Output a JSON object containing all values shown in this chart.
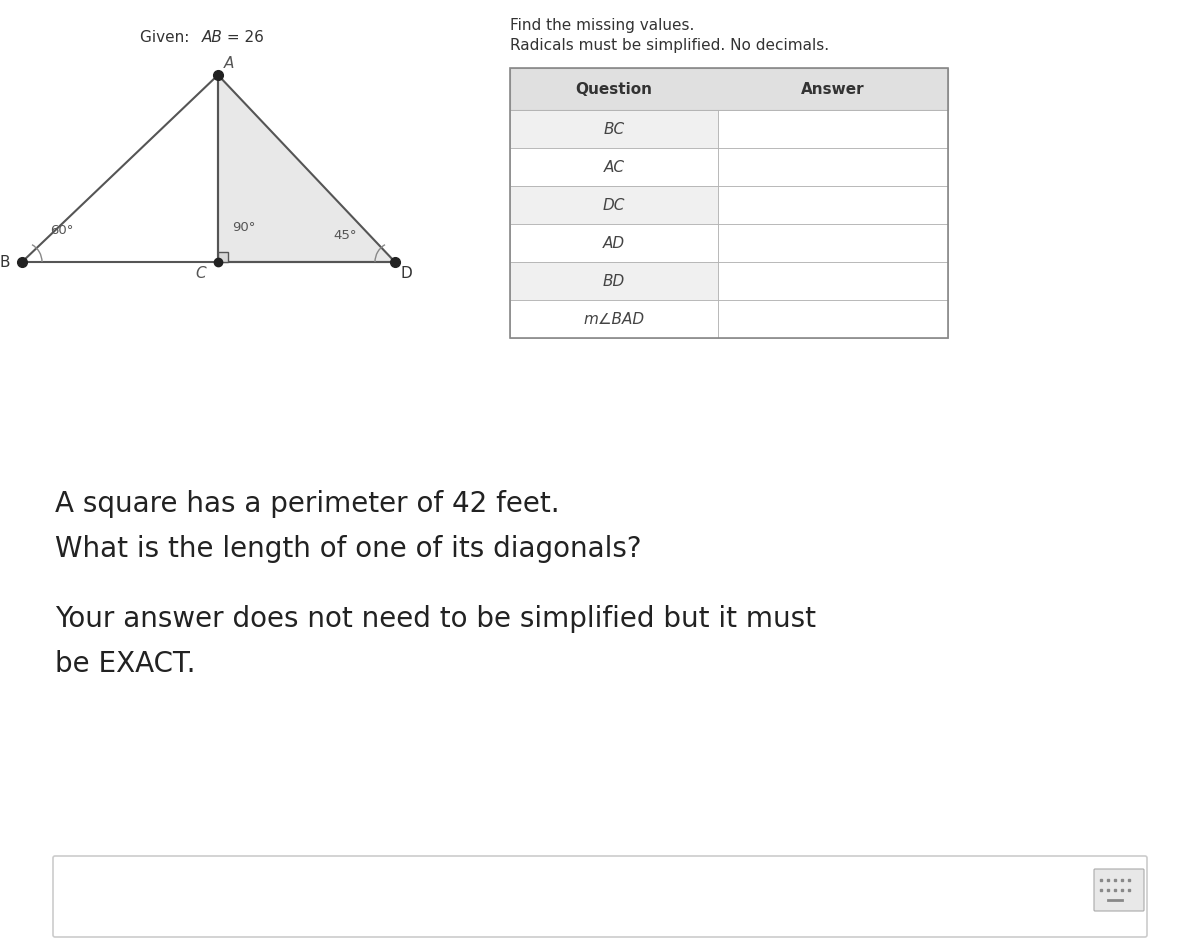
{
  "bg_color": "#ffffff",
  "title_top": "Find the missing values.",
  "title_top2": "Radicals must be simplified. No decimals.",
  "table_header_q": "Question",
  "table_header_a": "Answer",
  "table_rows": [
    "BC",
    "AC",
    "DC",
    "AD",
    "BD",
    "m∠BAD"
  ],
  "angle_60": "60°",
  "angle_90": "90°",
  "angle_45": "45°",
  "label_A": "A",
  "label_B": "B",
  "label_C": "C",
  "label_D": "D",
  "triangle_fill": "#e8e8e8",
  "triangle_stroke": "#555555",
  "question2_line1": "A square has a perimeter of 42 feet.",
  "question2_line2": "What is the length of one of its diagonals?",
  "note_line1": "Your answer does not need to be simplified but it must",
  "note_line2": "be EXACT.",
  "table_bg_header": "#e0e0e0",
  "table_bg_row_odd": "#f0f0f0",
  "table_bg_row_even": "#ffffff",
  "table_border": "#aaaaaa",
  "text_color": "#333333"
}
